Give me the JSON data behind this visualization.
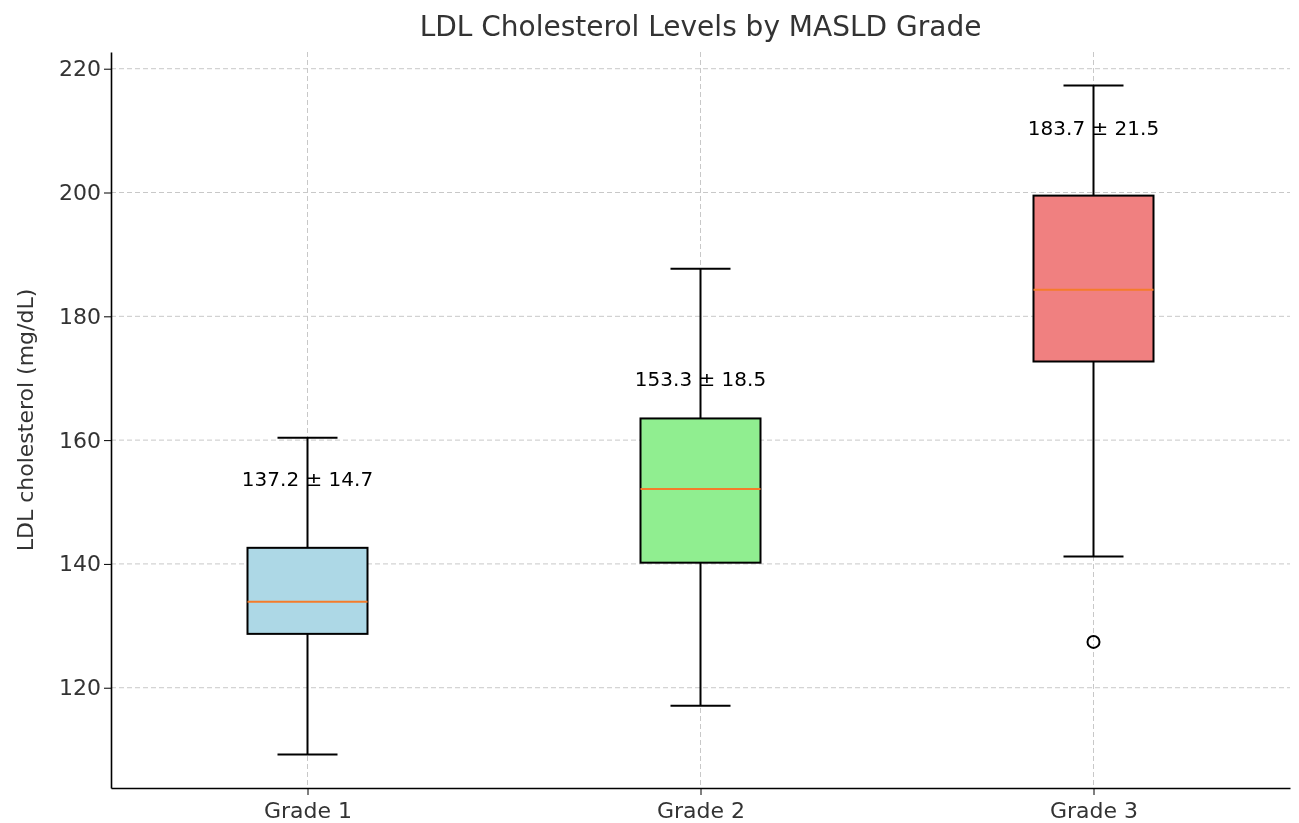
{
  "chart_data": {
    "type": "box",
    "title": "LDL Cholesterol Levels by MASLD Grade",
    "ylabel": "LDL cholesterol (mg/dL)",
    "categories": [
      "Grade 1",
      "Grade 2",
      "Grade 3"
    ],
    "colors": [
      "#add8e6",
      "#90ee90",
      "#f08080"
    ],
    "boxes": [
      {
        "low": 109.2,
        "q1": 128.7,
        "median": 133.9,
        "q3": 142.6,
        "high": 160.4
      },
      {
        "low": 117.1,
        "q1": 140.2,
        "median": 152.1,
        "q3": 163.5,
        "high": 187.7
      },
      {
        "low": 141.2,
        "q1": 172.7,
        "median": 184.3,
        "q3": 199.5,
        "high": 217.3,
        "outliers": [
          127.4
        ]
      }
    ],
    "ylim": [
      103.8,
      222.7
    ],
    "yticks": [
      120,
      140,
      160,
      180,
      200,
      220
    ],
    "grid": true,
    "annotations": [
      {
        "text": "137.2 ± 14.7",
        "x": "Grade 1",
        "y": 153.4
      },
      {
        "text": "153.3 ± 18.5",
        "x": "Grade 2",
        "y": 169.6
      },
      {
        "text": "183.7 ± 21.5",
        "x": "Grade 3",
        "y": 210.1
      }
    ]
  }
}
